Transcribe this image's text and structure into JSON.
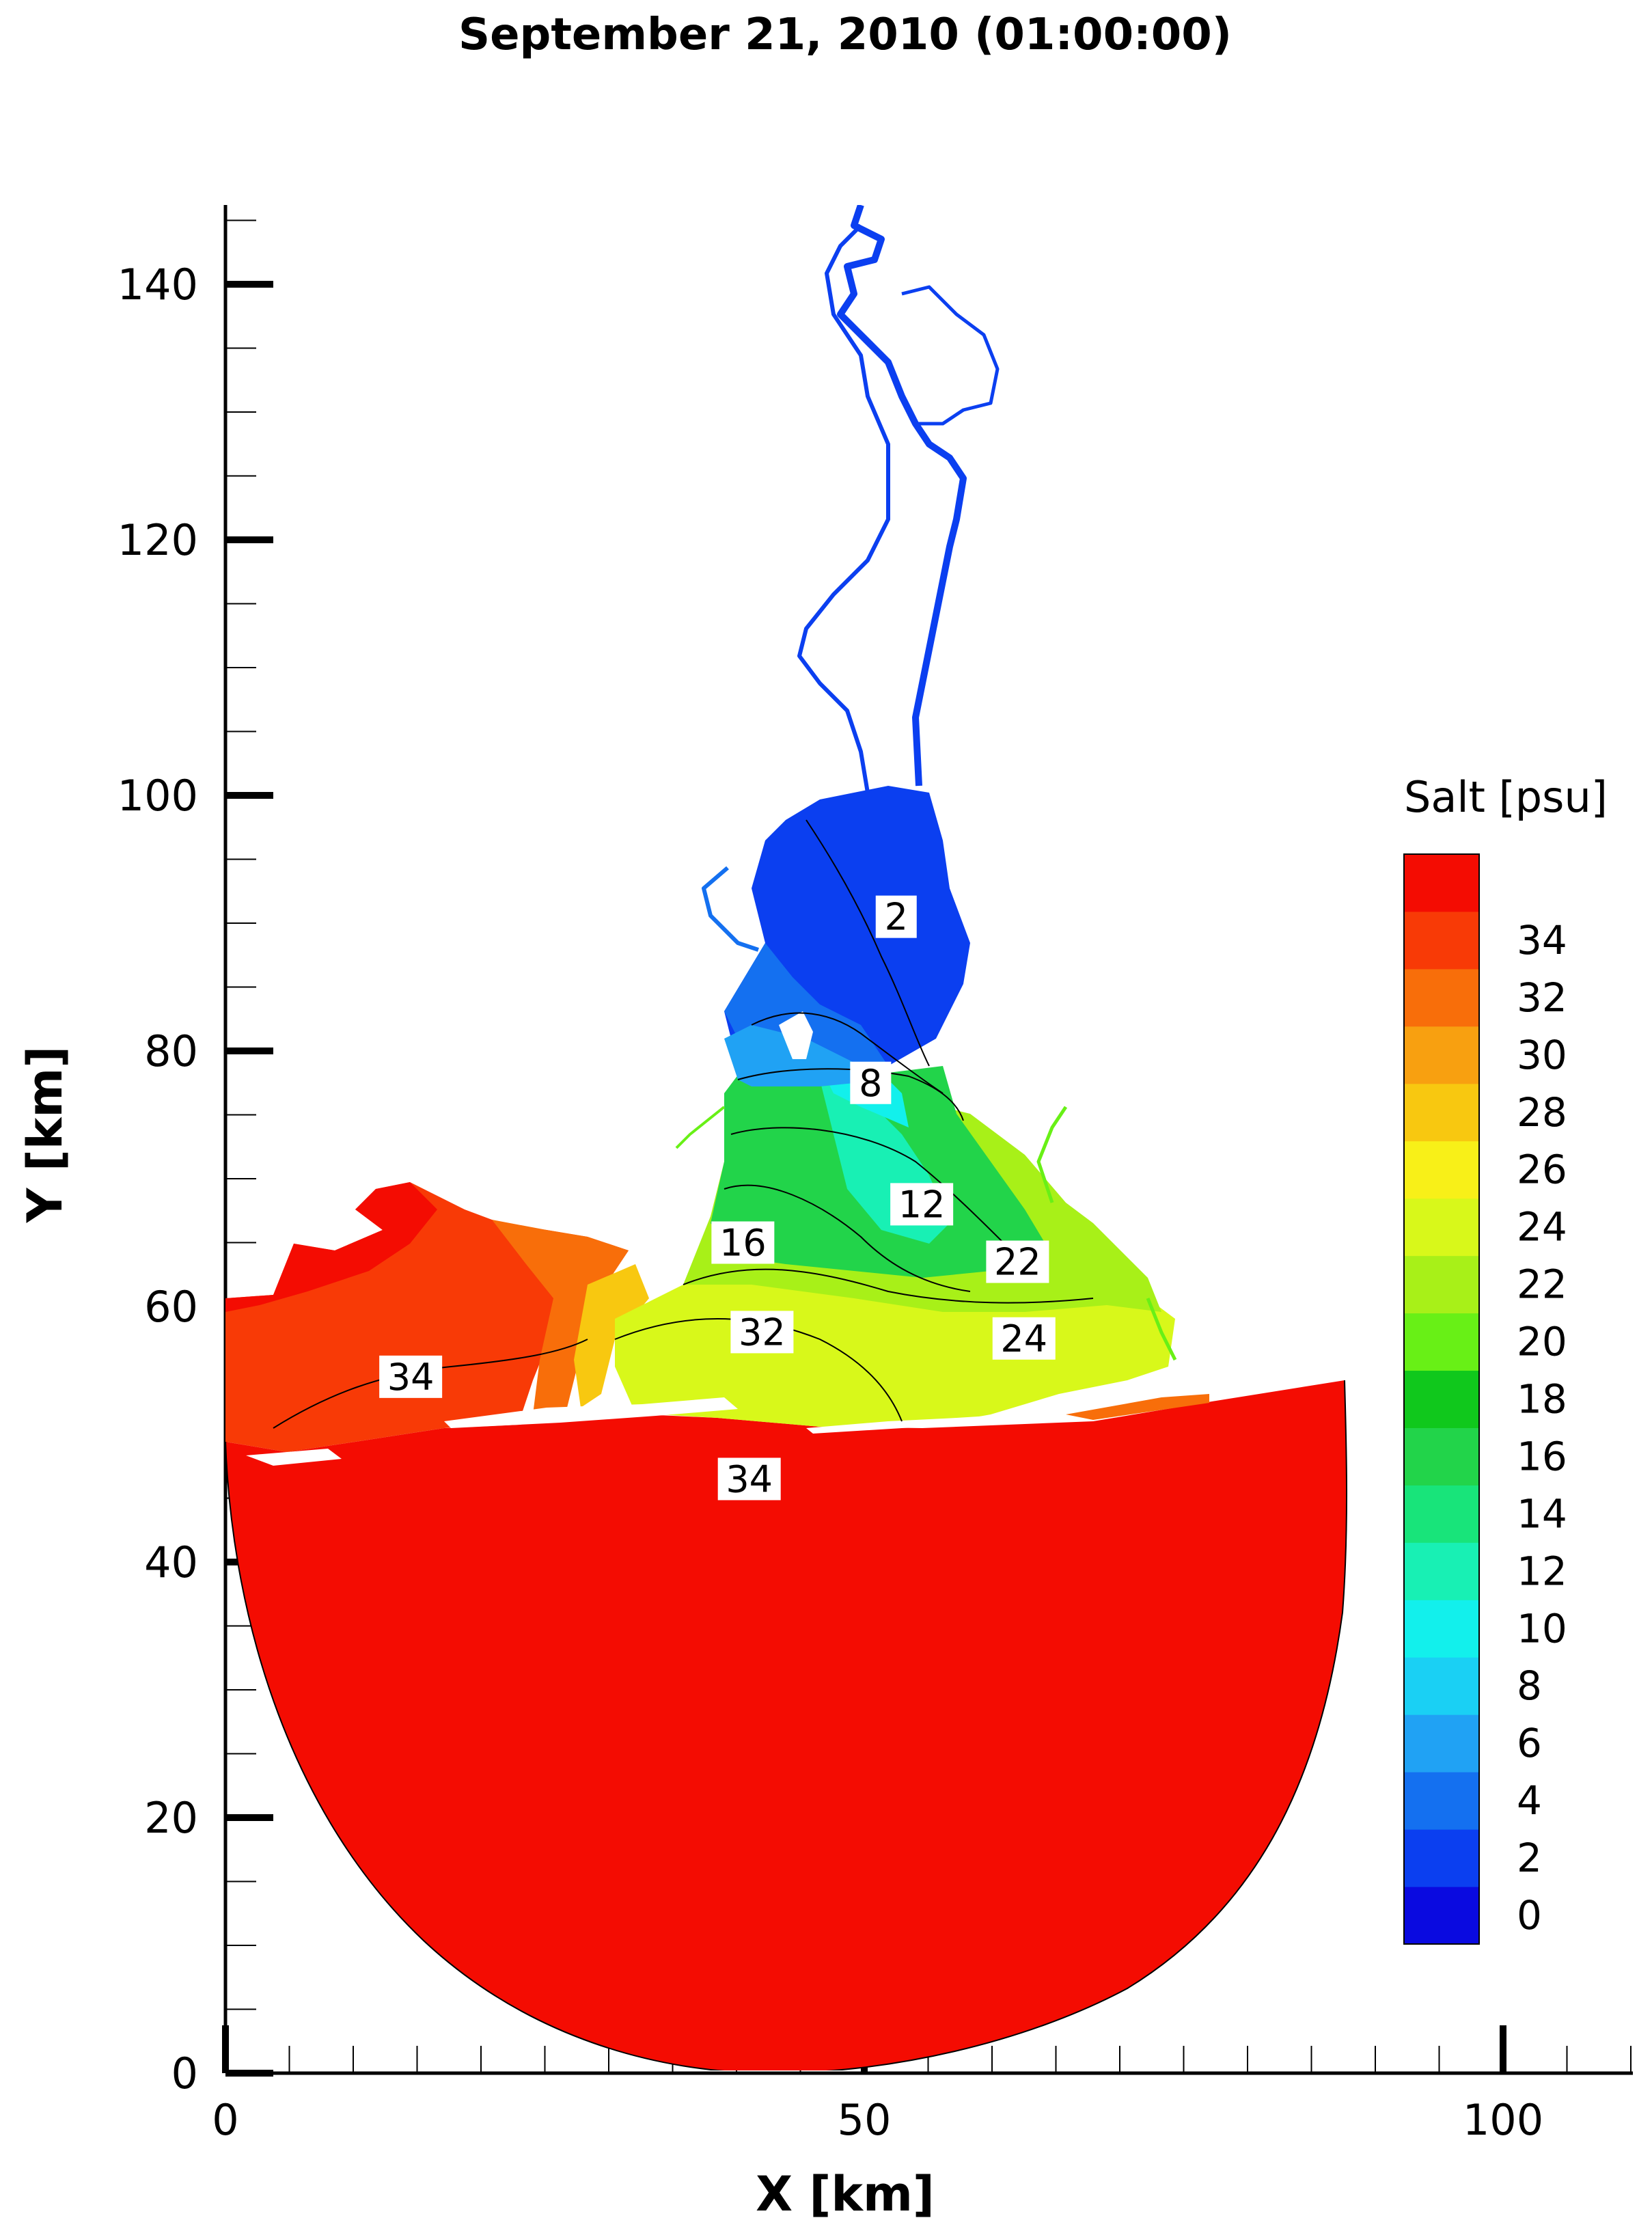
{
  "title": "September 21, 2010 (01:00:00)",
  "chart_data": {
    "type": "contour-map",
    "title": "September 21, 2010 (01:00:00)",
    "xlabel": "X [km]",
    "ylabel": "Y [km]",
    "xlim": [
      0,
      110
    ],
    "ylim": [
      0,
      146
    ],
    "x_ticks": [
      0,
      50,
      100
    ],
    "y_ticks": [
      0,
      20,
      40,
      60,
      80,
      100,
      120,
      140
    ],
    "x_minor_step": 5,
    "y_minor_step": 5,
    "colorbar": {
      "title": "Salt [psu]",
      "levels": [
        0,
        2,
        4,
        6,
        8,
        10,
        12,
        14,
        16,
        18,
        20,
        22,
        24,
        26,
        28,
        30,
        32,
        34
      ],
      "colors": [
        "#0a0ae0",
        "#0b3ff0",
        "#1470f0",
        "#20a2f4",
        "#1ad0f4",
        "#12f0ec",
        "#18f0b4",
        "#18e47a",
        "#22d44a",
        "#10c81c",
        "#68f016",
        "#a8f018",
        "#d8f81a",
        "#f8f018",
        "#f8c810",
        "#f8a010",
        "#f86e0a",
        "#f83a06",
        "#f40c02"
      ]
    },
    "contour_labels": [
      {
        "value": "2",
        "x": 52.5,
        "y": 90.5
      },
      {
        "value": "8",
        "x": 50.5,
        "y": 77.5
      },
      {
        "value": "12",
        "x": 54.5,
        "y": 68
      },
      {
        "value": "16",
        "x": 40.5,
        "y": 65
      },
      {
        "value": "22",
        "x": 62,
        "y": 63.5
      },
      {
        "value": "24",
        "x": 62.5,
        "y": 57.5
      },
      {
        "value": "32",
        "x": 42,
        "y": 58
      },
      {
        "value": "34",
        "x": 14.5,
        "y": 54.5
      },
      {
        "value": "34",
        "x": 41,
        "y": 46.5
      }
    ]
  }
}
